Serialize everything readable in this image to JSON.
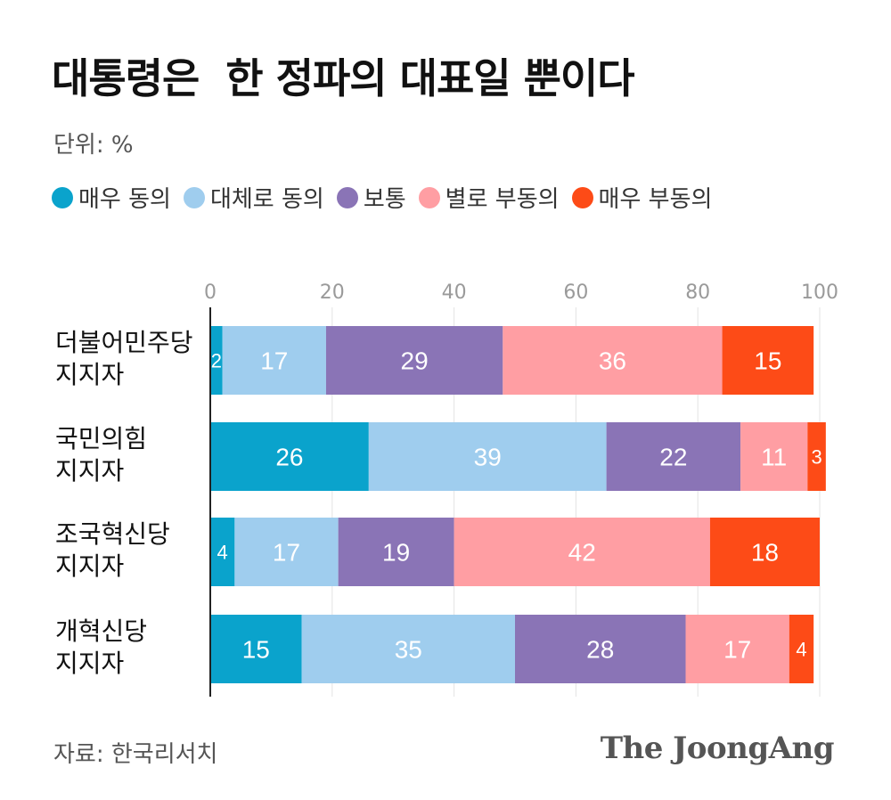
{
  "title": "대통령은  한 정파의 대표일 뿐이다",
  "unit_label": "단위: %",
  "source": "자료: 한국리서치",
  "brand": "The JoongAng",
  "legend_items": [
    {
      "label": "매우 동의",
      "color": "#0aa3cc"
    },
    {
      "label": "대체로 동의",
      "color": "#9fcdee"
    },
    {
      "label": "보통",
      "color": "#8a74b6"
    },
    {
      "label": "별로 부동의",
      "color": "#ff9ea3"
    },
    {
      "label": "매우 부동의",
      "color": "#fd4b17"
    }
  ],
  "chart_data": {
    "type": "bar",
    "orientation": "horizontal",
    "stacked": true,
    "title": "대통령은  한 정파의 대표일 뿐이다",
    "unit": "%",
    "xlim": [
      0,
      100
    ],
    "xticks": [
      0,
      20,
      40,
      60,
      80,
      100
    ],
    "xtick_labels": [
      "0",
      "20",
      "40",
      "60",
      "80",
      "100"
    ],
    "category_lines": [
      [
        "더불어민주당",
        "지지자"
      ],
      [
        "국민의힘",
        "지지자"
      ],
      [
        "조국혁신당",
        "지지자"
      ],
      [
        "개혁신당",
        "지지자"
      ]
    ],
    "categories": [
      "더불어민주당 지지자",
      "국민의힘 지지자",
      "조국혁신당 지지자",
      "개혁신당 지지자"
    ],
    "series": [
      {
        "name": "매우 동의",
        "color": "#0aa3cc",
        "values": [
          2,
          26,
          4,
          15
        ]
      },
      {
        "name": "대체로 동의",
        "color": "#9fcdee",
        "values": [
          17,
          39,
          17,
          35
        ]
      },
      {
        "name": "보통",
        "color": "#8a74b6",
        "values": [
          29,
          22,
          19,
          28
        ]
      },
      {
        "name": "별로 부동의",
        "color": "#ff9ea3",
        "values": [
          36,
          11,
          42,
          17
        ]
      },
      {
        "name": "매우 부동의",
        "color": "#fd4b17",
        "values": [
          15,
          3,
          18,
          4
        ]
      }
    ],
    "legend_position": "top-left"
  }
}
